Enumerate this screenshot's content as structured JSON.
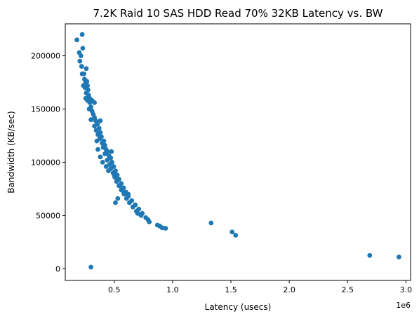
{
  "chart_data": {
    "type": "scatter",
    "title": "7.2K Raid 10 SAS HDD Read 70% 32KB Latency vs. BW",
    "xlabel": "Latency (usecs)",
    "ylabel": "Bandwidth (KB/sec)",
    "x_offset_label": "1e6",
    "xlim": [
      80000,
      3040000
    ],
    "ylim": [
      -11000,
      230000
    ],
    "x_ticks": [
      500000,
      1000000,
      1500000,
      2000000,
      2500000,
      3000000
    ],
    "x_tick_labels": [
      "0.5",
      "1.0",
      "1.5",
      "2.0",
      "2.5",
      "3.0"
    ],
    "y_ticks": [
      0,
      50000,
      100000,
      150000,
      200000
    ],
    "y_tick_labels": [
      "0",
      "50000",
      "100000",
      "150000",
      "200000"
    ],
    "grid": false,
    "legend": "none",
    "marker_color": "#1f77b4",
    "points": [
      [
        180000,
        215000
      ],
      [
        225000,
        220000
      ],
      [
        200000,
        203000
      ],
      [
        215000,
        200000
      ],
      [
        230000,
        207000
      ],
      [
        205000,
        195000
      ],
      [
        220000,
        190000
      ],
      [
        260000,
        188000
      ],
      [
        240000,
        183000
      ],
      [
        225000,
        183000
      ],
      [
        245000,
        178000
      ],
      [
        255000,
        175000
      ],
      [
        235000,
        172000
      ],
      [
        250000,
        170000
      ],
      [
        270000,
        172000
      ],
      [
        260000,
        165000
      ],
      [
        280000,
        163000
      ],
      [
        255000,
        160000
      ],
      [
        270000,
        158000
      ],
      [
        290000,
        156000
      ],
      [
        300000,
        152000
      ],
      [
        285000,
        150000
      ],
      [
        310000,
        148000
      ],
      [
        320000,
        145000
      ],
      [
        330000,
        142000
      ],
      [
        300000,
        140000
      ],
      [
        340000,
        139000
      ],
      [
        355000,
        136000
      ],
      [
        330000,
        134000
      ],
      [
        370000,
        132000
      ],
      [
        345000,
        130000
      ],
      [
        380000,
        128000
      ],
      [
        360000,
        126000
      ],
      [
        390000,
        124000
      ],
      [
        375000,
        122000
      ],
      [
        410000,
        120000
      ],
      [
        395000,
        118000
      ],
      [
        420000,
        116000
      ],
      [
        405000,
        114000
      ],
      [
        430000,
        112000
      ],
      [
        440000,
        110000
      ],
      [
        475000,
        110000
      ],
      [
        420000,
        108000
      ],
      [
        455000,
        106000
      ],
      [
        470000,
        104000
      ],
      [
        440000,
        102000
      ],
      [
        480000,
        100000
      ],
      [
        460000,
        98000
      ],
      [
        495000,
        96000
      ],
      [
        470000,
        94000
      ],
      [
        510000,
        92000
      ],
      [
        490000,
        90000
      ],
      [
        525000,
        88000
      ],
      [
        505000,
        86000
      ],
      [
        540000,
        84000
      ],
      [
        520000,
        82000
      ],
      [
        560000,
        80000
      ],
      [
        540000,
        78000
      ],
      [
        580000,
        76000
      ],
      [
        560000,
        74000
      ],
      [
        600000,
        72000
      ],
      [
        585000,
        70000
      ],
      [
        620000,
        68000
      ],
      [
        605000,
        66000
      ],
      [
        650000,
        64000
      ],
      [
        630000,
        62000
      ],
      [
        680000,
        60000
      ],
      [
        660000,
        58000
      ],
      [
        710000,
        56000
      ],
      [
        690000,
        54000
      ],
      [
        740000,
        52000
      ],
      [
        730000,
        50000
      ],
      [
        770000,
        48000
      ],
      [
        790000,
        46000
      ],
      [
        800000,
        44000
      ],
      [
        870000,
        41000
      ],
      [
        890000,
        40000
      ],
      [
        910000,
        38500
      ],
      [
        940000,
        38000
      ],
      [
        380000,
        139000
      ],
      [
        330000,
        156000
      ],
      [
        290000,
        160000
      ],
      [
        310000,
        158000
      ],
      [
        275000,
        168000
      ],
      [
        265000,
        176000
      ],
      [
        350000,
        120000
      ],
      [
        360000,
        112000
      ],
      [
        380000,
        105000
      ],
      [
        400000,
        100000
      ],
      [
        430000,
        96000
      ],
      [
        450000,
        92000
      ],
      [
        500000,
        88000
      ],
      [
        545000,
        78000
      ],
      [
        580000,
        72000
      ],
      [
        620000,
        70000
      ],
      [
        510000,
        62000
      ],
      [
        530000,
        66000
      ],
      [
        700000,
        52000
      ],
      [
        1330000,
        43000
      ],
      [
        1510000,
        34500
      ],
      [
        1540000,
        31500
      ],
      [
        2690000,
        12500
      ],
      [
        2940000,
        11000
      ],
      [
        300000,
        1500
      ]
    ]
  }
}
